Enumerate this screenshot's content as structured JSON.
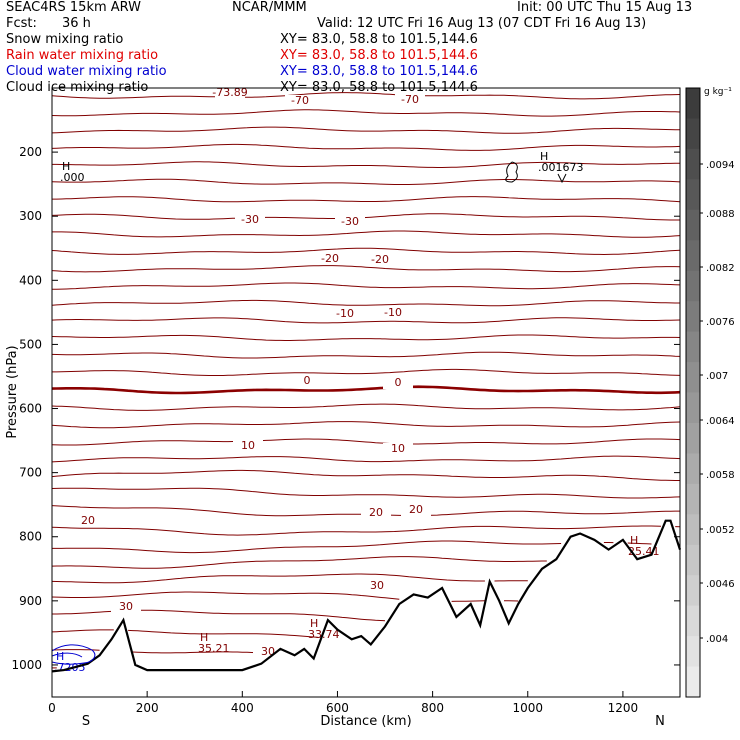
{
  "header": {
    "model": "SEAC4RS 15km ARW",
    "center": "NCAR/MMM",
    "init": "Init: 00 UTC Thu 15 Aug 13",
    "fcst_label": "Fcst:",
    "fcst_value": "36 h",
    "valid": "Valid: 12 UTC Fri 16 Aug 13 (07 CDT Fri 16 Aug 13)",
    "fields": [
      {
        "name": "Snow mixing ratio",
        "xy": "XY=  83.0, 58.8 to 101.5,144.6",
        "color": "#000000"
      },
      {
        "name": "Rain water mixing ratio",
        "xy": "XY=  83.0, 58.8 to 101.5,144.6",
        "color": "#e00000"
      },
      {
        "name": "Cloud water mixing ratio",
        "xy": "XY=  83.0, 58.8 to 101.5,144.6",
        "color": "#0000d0"
      },
      {
        "name": "Cloud ice mixing ratio",
        "xy": "XY=  83.0, 58.8 to 101.5,144.6",
        "color": "#000000"
      }
    ]
  },
  "chart_data": {
    "type": "line",
    "xlabel": "Distance (km)",
    "ylabel": "Pressure (hPa)",
    "xlim": [
      0,
      1320
    ],
    "ylim": [
      1050,
      100
    ],
    "x_ticks": [
      0,
      200,
      400,
      600,
      800,
      1000,
      1200
    ],
    "y_ticks": [
      200,
      300,
      400,
      500,
      600,
      700,
      800,
      900,
      1000
    ],
    "end_labels": {
      "left": "S",
      "right": "N"
    },
    "colorbar": {
      "unit": "g kg⁻¹",
      "ticks": [
        ".004",
        ".0046",
        ".0052",
        ".0058",
        ".0064",
        ".007",
        ".0076",
        ".0082",
        ".0088",
        ".0094"
      ]
    },
    "temperature_contour_labels": [
      "-73.89",
      "-70",
      "-70",
      "-30",
      "-30",
      "-20",
      "-20",
      "-10",
      "-10",
      "0",
      "0",
      "10",
      "10",
      "20",
      "20",
      "20",
      "30",
      "30",
      "30"
    ],
    "extrema_labels": [
      {
        "mark": "H",
        "value": ".000"
      },
      {
        "mark": "H",
        "value": ".001673"
      },
      {
        "mark": "H",
        "value": "35.21"
      },
      {
        "mark": "H",
        "value": "33.74"
      },
      {
        "mark": "H",
        "value": "25.41"
      },
      {
        "mark": "H",
        "value": ".7205"
      }
    ],
    "terrain": {
      "x": [
        0,
        25,
        50,
        75,
        100,
        125,
        150,
        175,
        200,
        250,
        300,
        350,
        400,
        440,
        480,
        510,
        530,
        550,
        580,
        600,
        630,
        650,
        670,
        700,
        730,
        760,
        790,
        820,
        850,
        880,
        900,
        920,
        940,
        960,
        980,
        1000,
        1030,
        1060,
        1090,
        1110,
        1140,
        1170,
        1200,
        1230,
        1260,
        1290,
        1300,
        1320
      ],
      "p": [
        1010,
        1008,
        1003,
        998,
        985,
        960,
        930,
        1000,
        1008,
        1008,
        1008,
        1008,
        1008,
        998,
        975,
        985,
        975,
        990,
        930,
        945,
        960,
        955,
        968,
        940,
        905,
        890,
        895,
        880,
        925,
        905,
        938,
        870,
        900,
        935,
        905,
        880,
        850,
        835,
        800,
        795,
        805,
        820,
        805,
        835,
        828,
        775,
        775,
        820
      ]
    },
    "colors": {
      "contour": "#800000",
      "freezing": "#8b0000",
      "terrain": "#000000",
      "cloud_water": "#0000d0"
    }
  }
}
